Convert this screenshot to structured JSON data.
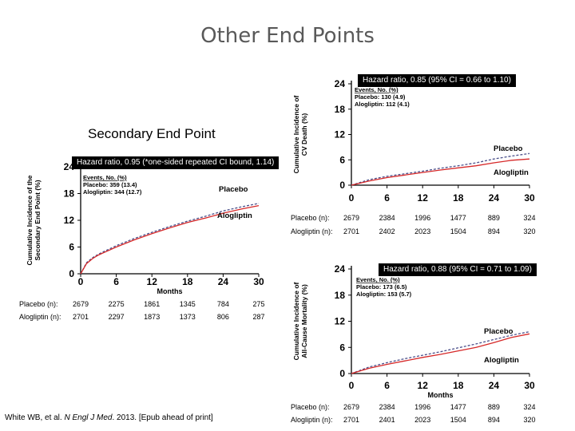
{
  "slide": {
    "title": "Other End Points",
    "secondary_title": "Secondary End Point",
    "citation_authors": "White WB, et al. ",
    "citation_journal": "N Engl J Med",
    "citation_rest": ". 2013. [Epub ahead of print]"
  },
  "colors": {
    "placebo": "#4a4f8a",
    "alogliptin": "#d62828"
  },
  "chart_data": [
    {
      "id": "cv-death",
      "type": "line",
      "hazard_ratio_label": "Hazard ratio, 0.85 (95% CI = 0.66 to 1.10)",
      "ylabel_lines": [
        "Cumulative Incidence of",
        "CV Death (%)"
      ],
      "xlabel": "",
      "xlim": [
        0,
        30
      ],
      "ylim": [
        0,
        24
      ],
      "xticks": [
        "0",
        "6",
        "12",
        "18",
        "24",
        "30"
      ],
      "yticks": [
        "0",
        "6",
        "12",
        "18",
        "24"
      ],
      "x_values": [
        0,
        6,
        12,
        18,
        24,
        30
      ],
      "events_header": "Events, No. (%)",
      "events": [
        "Placebo: 130 (4.9)",
        "Alogliptin: 112 (4.1)"
      ],
      "series": [
        {
          "name": "Placebo",
          "key": "placebo",
          "dashed": true,
          "x": [
            0,
            3,
            6,
            9,
            12,
            15,
            18,
            21,
            24,
            27,
            30
          ],
          "y": [
            0,
            1.3,
            2.1,
            2.7,
            3.3,
            4.0,
            4.6,
            5.3,
            6.2,
            6.9,
            7.5
          ]
        },
        {
          "name": "Alogliptin",
          "key": "alogliptin",
          "dashed": false,
          "x": [
            0,
            3,
            6,
            9,
            12,
            15,
            18,
            21,
            24,
            27,
            30
          ],
          "y": [
            0,
            1.0,
            1.8,
            2.4,
            3.0,
            3.6,
            4.1,
            4.6,
            5.3,
            5.9,
            6.2
          ]
        }
      ],
      "series_labels": [
        "Placebo",
        "Alogliptin"
      ],
      "at_risk": [
        {
          "label": "Placebo (n):",
          "values": [
            "2679",
            "2384",
            "1996",
            "1477",
            "889",
            "324"
          ]
        },
        {
          "label": "Alogliptin (n):",
          "values": [
            "2701",
            "2402",
            "2023",
            "1504",
            "894",
            "320"
          ]
        }
      ]
    },
    {
      "id": "secondary-end-point",
      "type": "line",
      "hazard_ratio_label": "Hazard ratio, 0.95 (*one-sided repeated CI bound, 1.14)",
      "ylabel_lines": [
        "Cumulative Incidence of the",
        "Secondary End Point (%)"
      ],
      "xlabel": "Months",
      "xlim": [
        0,
        30
      ],
      "ylim": [
        0,
        24
      ],
      "xticks": [
        "0",
        "6",
        "12",
        "18",
        "24",
        "30"
      ],
      "yticks": [
        "0",
        "6",
        "12",
        "18",
        "24"
      ],
      "x_values": [
        0,
        6,
        12,
        18,
        24,
        30
      ],
      "events_header": "Events, No. (%)",
      "events": [
        "Placebo: 359 (13.4)",
        "Alogliptin: 344 (12.7)"
      ],
      "series": [
        {
          "name": "Placebo",
          "key": "placebo",
          "dashed": true,
          "x": [
            0,
            1,
            2,
            3,
            6,
            9,
            12,
            15,
            18,
            21,
            24,
            27,
            30
          ],
          "y": [
            0,
            2.5,
            3.6,
            4.4,
            6.3,
            7.9,
            9.3,
            10.6,
            11.8,
            12.9,
            14.1,
            15.0,
            15.8
          ]
        },
        {
          "name": "Alogliptin",
          "key": "alogliptin",
          "dashed": false,
          "x": [
            0,
            1,
            2,
            3,
            6,
            9,
            12,
            15,
            18,
            21,
            24,
            27,
            30
          ],
          "y": [
            0,
            2.3,
            3.4,
            4.2,
            6.0,
            7.6,
            9.0,
            10.3,
            11.5,
            12.5,
            13.6,
            14.5,
            15.3
          ]
        }
      ],
      "series_labels": [
        "Placebo",
        "Alogliptin"
      ],
      "at_risk": [
        {
          "label": "Placebo (n):",
          "values": [
            "2679",
            "2275",
            "1861",
            "1345",
            "784",
            "275"
          ]
        },
        {
          "label": "Alogliptin (n):",
          "values": [
            "2701",
            "2297",
            "1873",
            "1373",
            "806",
            "287"
          ]
        }
      ]
    },
    {
      "id": "all-cause-mortality",
      "type": "line",
      "hazard_ratio_label": "Hazard ratio, 0.88 (95% CI = 0.71 to 1.09)",
      "ylabel_lines": [
        "Cumulative Incidence of",
        "All-Cause Mortality (%)"
      ],
      "xlabel": "Months",
      "xlim": [
        0,
        30
      ],
      "ylim": [
        0,
        24
      ],
      "xticks": [
        "0",
        "6",
        "12",
        "18",
        "24",
        "30"
      ],
      "yticks": [
        "0",
        "6",
        "12",
        "18",
        "24"
      ],
      "x_values": [
        0,
        6,
        12,
        18,
        24,
        30
      ],
      "events_header": "Events, No. (%)",
      "events": [
        "Placebo: 173 (6.5)",
        "Alogliptin: 153 (5.7)"
      ],
      "series": [
        {
          "name": "Placebo",
          "key": "placebo",
          "dashed": true,
          "x": [
            0,
            3,
            6,
            9,
            12,
            15,
            18,
            21,
            24,
            27,
            30
          ],
          "y": [
            0,
            1.5,
            2.5,
            3.4,
            4.2,
            5.0,
            5.9,
            6.8,
            7.8,
            8.8,
            9.6
          ]
        },
        {
          "name": "Alogliptin",
          "key": "alogliptin",
          "dashed": false,
          "x": [
            0,
            3,
            6,
            9,
            12,
            15,
            18,
            21,
            24,
            27,
            30
          ],
          "y": [
            0,
            1.2,
            2.1,
            2.9,
            3.7,
            4.4,
            5.2,
            6.0,
            7.1,
            8.3,
            9.1
          ]
        }
      ],
      "series_labels": [
        "Placebo",
        "Alogliptin"
      ],
      "at_risk": [
        {
          "label": "Placebo (n):",
          "values": [
            "2679",
            "2384",
            "1996",
            "1477",
            "889",
            "324"
          ]
        },
        {
          "label": "Alogliptin (n):",
          "values": [
            "2701",
            "2401",
            "2023",
            "1504",
            "894",
            "320"
          ]
        }
      ]
    }
  ]
}
